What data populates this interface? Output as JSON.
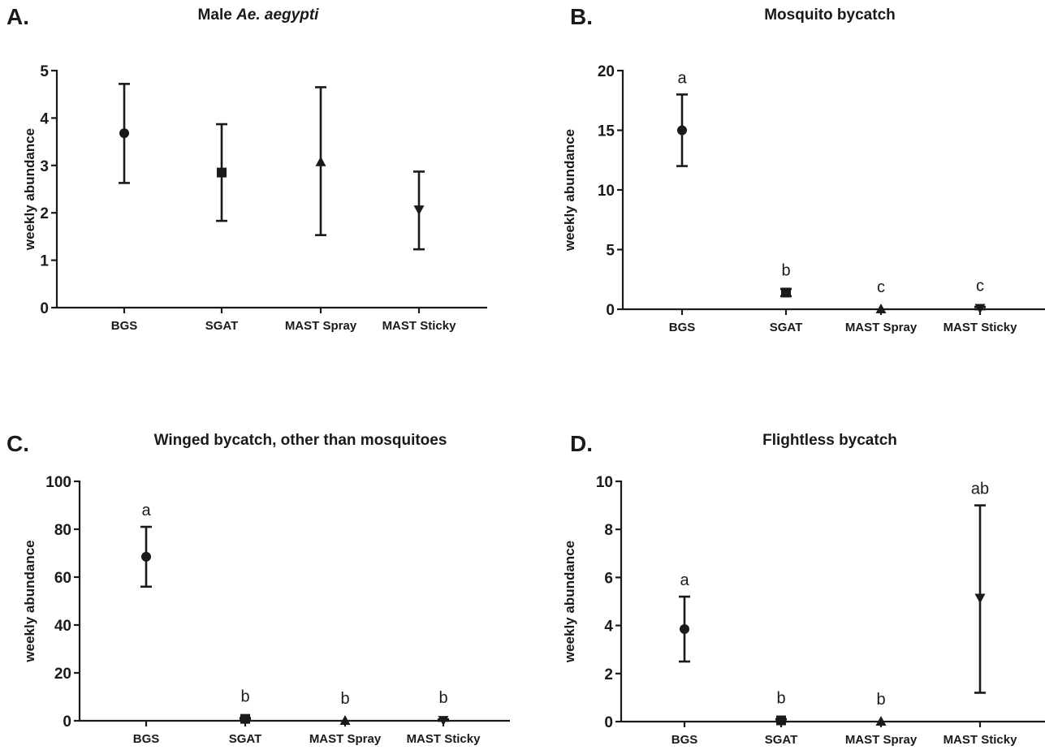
{
  "chart_data": [
    {
      "type": "scatter",
      "panel": "A.",
      "title_plain": "Male ",
      "title_italic": "Ae. aegypti",
      "ylabel": "weekly abundance",
      "categories": [
        "BGS",
        "SGAT",
        "MAST Spray",
        "MAST Sticky"
      ],
      "values": [
        3.68,
        2.85,
        3.07,
        2.07
      ],
      "lower": [
        2.63,
        1.83,
        1.53,
        1.23
      ],
      "upper": [
        4.72,
        3.87,
        4.65,
        2.87
      ],
      "markers": [
        "circle",
        "square",
        "triangle-up",
        "triangle-down"
      ],
      "letters": [
        "",
        "",
        "",
        ""
      ],
      "ylim": [
        0,
        5
      ],
      "yticks": [
        0,
        1,
        2,
        3,
        4,
        5
      ]
    },
    {
      "type": "scatter",
      "panel": "B.",
      "title_plain": "Mosquito bycatch",
      "title_italic": "",
      "ylabel": "weekly abundance",
      "categories": [
        "BGS",
        "SGAT",
        "MAST Spray",
        "MAST Sticky"
      ],
      "values": [
        15.0,
        1.4,
        0.0,
        0.1
      ],
      "lower": [
        12.0,
        1.1,
        0.0,
        0.0
      ],
      "upper": [
        18.0,
        1.7,
        0.0,
        0.2
      ],
      "markers": [
        "circle",
        "square",
        "triangle-up",
        "triangle-down"
      ],
      "letters": [
        "a",
        "b",
        "c",
        "c"
      ],
      "ylim": [
        0,
        20
      ],
      "yticks": [
        0,
        5,
        10,
        15,
        20
      ]
    },
    {
      "type": "scatter",
      "panel": "C.",
      "title_plain": "Winged bycatch, other than mosquitoes",
      "title_italic": "",
      "ylabel": "weekly abundance",
      "categories": [
        "BGS",
        "SGAT",
        "MAST Spray",
        "MAST Sticky"
      ],
      "values": [
        68.5,
        0.8,
        0.0,
        0.3
      ],
      "lower": [
        56.0,
        0.4,
        0.0,
        0.0
      ],
      "upper": [
        81.0,
        1.2,
        0.0,
        0.6
      ],
      "markers": [
        "circle",
        "square",
        "triangle-up",
        "triangle-down"
      ],
      "letters": [
        "a",
        "b",
        "b",
        "b"
      ],
      "ylim": [
        0,
        100
      ],
      "yticks": [
        0,
        20,
        40,
        60,
        80,
        100
      ]
    },
    {
      "type": "scatter",
      "panel": "D.",
      "title_plain": "Flightless bycatch",
      "title_italic": "",
      "ylabel": "weekly abundance",
      "categories": [
        "BGS",
        "SGAT",
        "MAST Spray",
        "MAST Sticky"
      ],
      "values": [
        3.85,
        0.05,
        0.0,
        5.15
      ],
      "lower": [
        2.5,
        0.0,
        0.0,
        1.2
      ],
      "upper": [
        5.2,
        0.1,
        0.0,
        9.0
      ],
      "markers": [
        "circle",
        "square",
        "triangle-up",
        "triangle-down"
      ],
      "letters": [
        "a",
        "b",
        "b",
        "ab"
      ],
      "ylim": [
        0,
        10
      ],
      "yticks": [
        0,
        2,
        4,
        6,
        8,
        10
      ]
    }
  ]
}
